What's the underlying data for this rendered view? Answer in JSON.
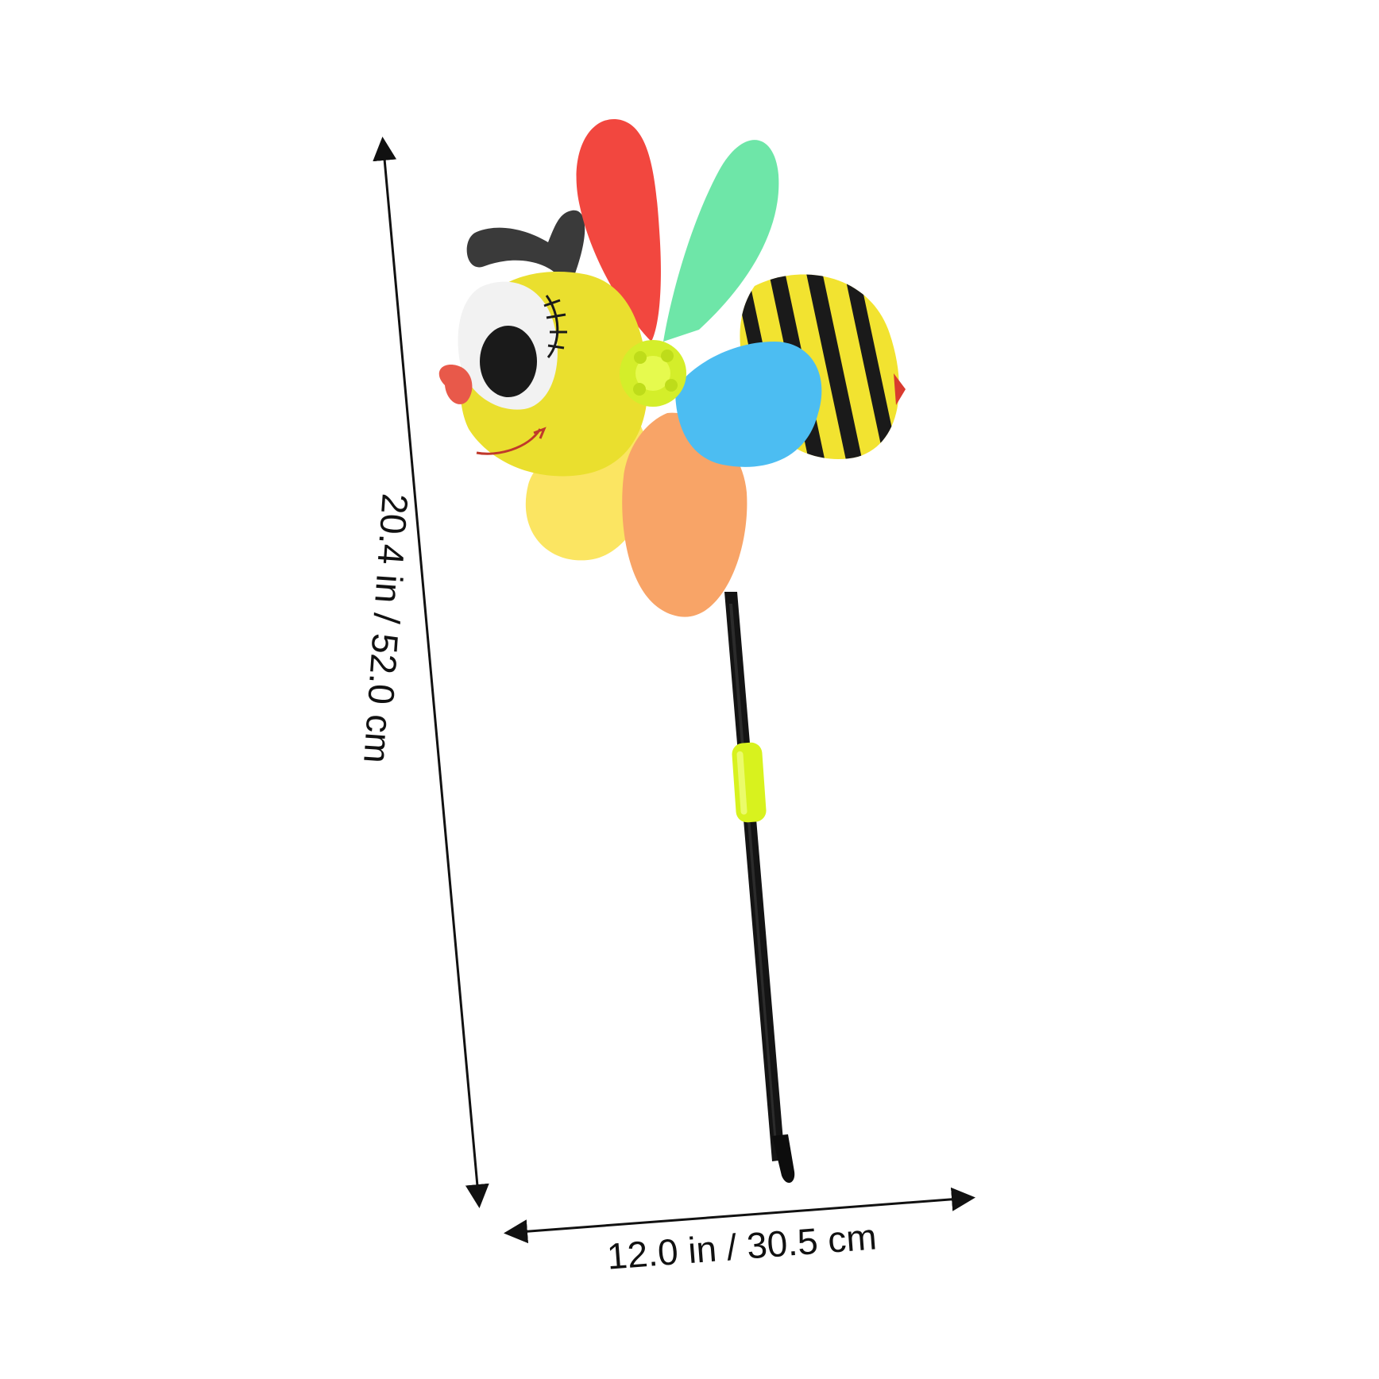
{
  "dimensions": {
    "height_label": "20.4 in / 52.0 cm",
    "width_label": "12.0 in / 30.5 cm"
  },
  "colors": {
    "background": "#ffffff",
    "dimension_line": "#111111",
    "petal_red": "#f2473f",
    "petal_green": "#6ee6a8",
    "petal_blue": "#4cbdf2",
    "petal_orange": "#f8a467",
    "petal_yellow": "#fbe562",
    "bee_yellow": "#f2e330",
    "bee_black": "#1a1a1a",
    "head_yellow": "#eadf2e",
    "eye_white": "#f2f2f2",
    "nose_red": "#e8594a",
    "hub_lime": "#d4ee2a",
    "stick_black": "#141414",
    "sleeve_lime": "#d8f21e"
  },
  "icons": {
    "product": "bee-pinwheel-icon"
  }
}
